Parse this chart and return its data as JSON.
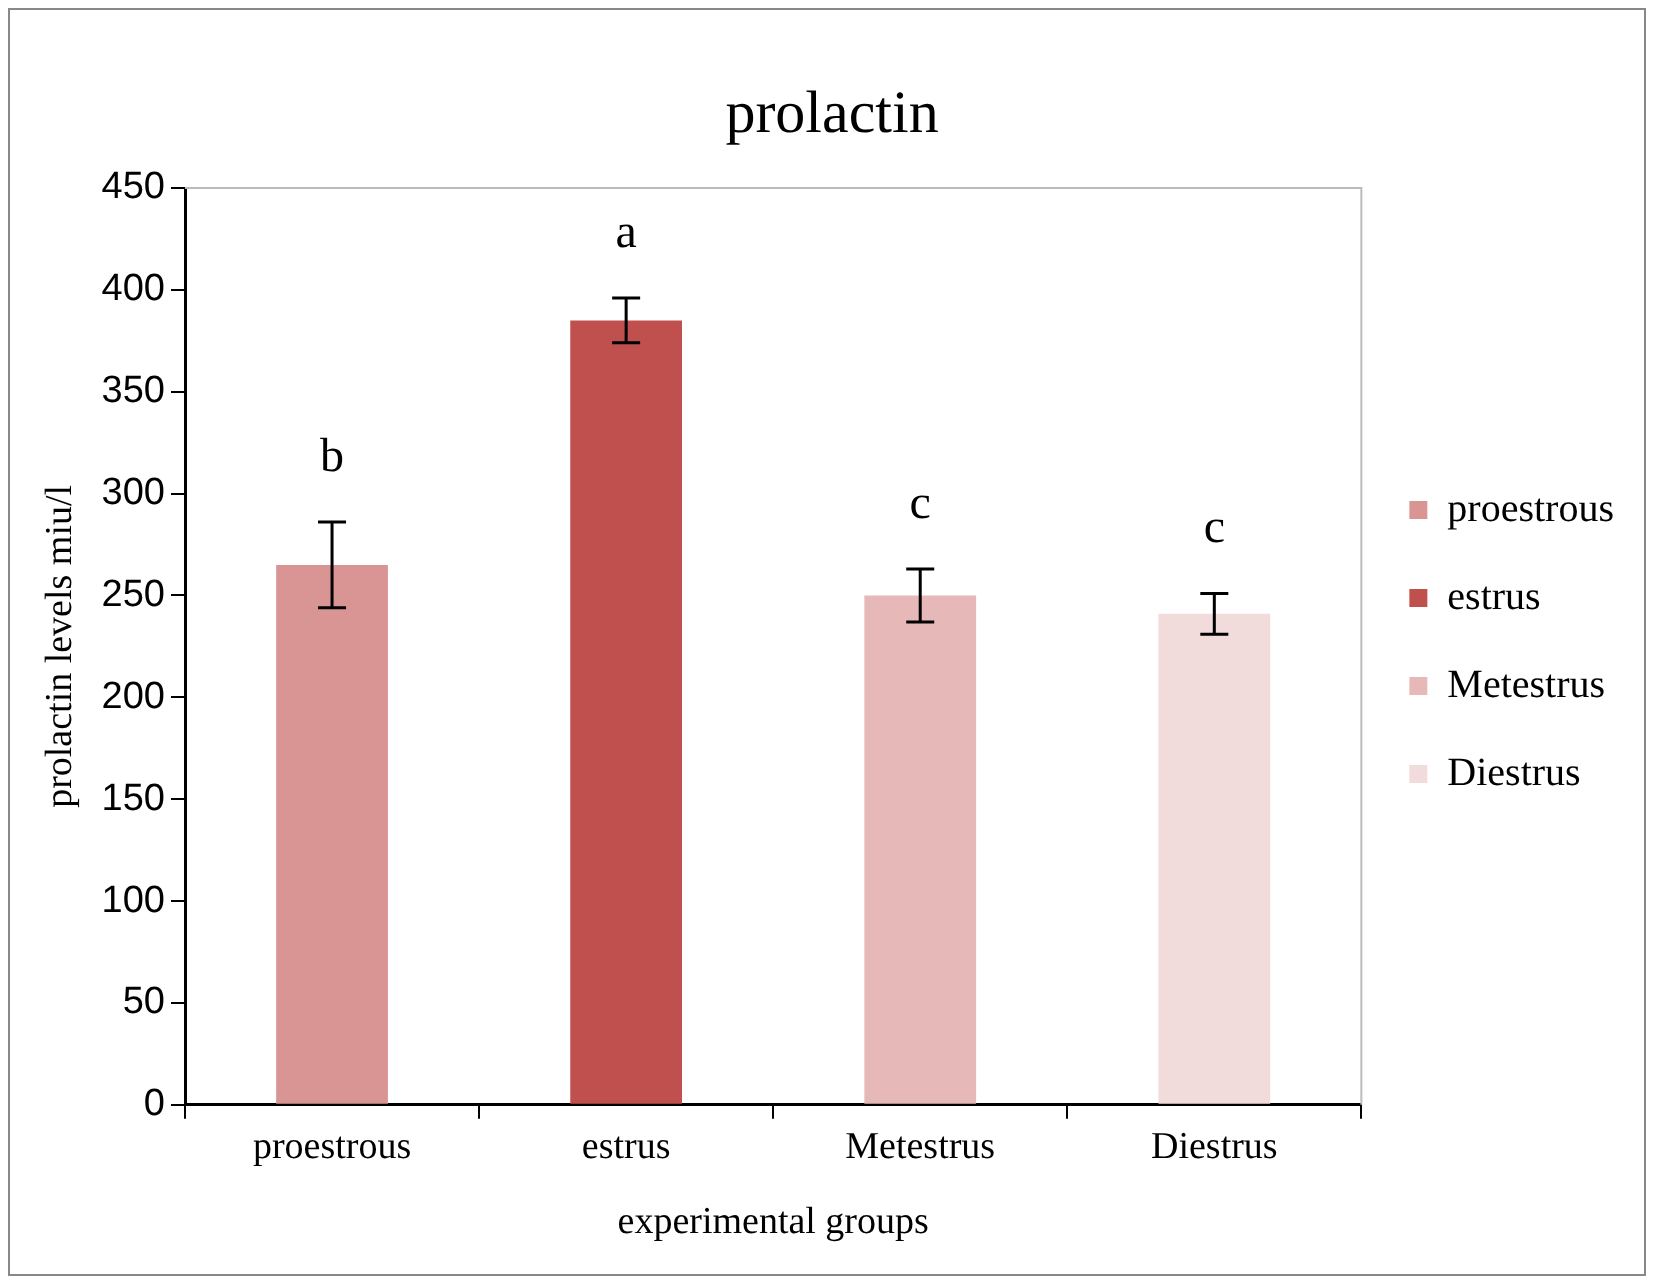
{
  "chart_data": {
    "type": "bar",
    "title": "prolactin",
    "xlabel": "experimental groups",
    "ylabel": "prolactin levels miu/l",
    "categories": [
      "proestrous",
      "estrus",
      "Metestrus",
      "Diestrus"
    ],
    "series": [
      {
        "name": "proestrous",
        "color": "#d99594",
        "values": [
          265,
          null,
          null,
          null
        ],
        "errors": [
          21,
          null,
          null,
          null
        ]
      },
      {
        "name": "estrus",
        "color": "#c0504d",
        "values": [
          null,
          385,
          null,
          null
        ],
        "errors": [
          null,
          11,
          null,
          null
        ]
      },
      {
        "name": "Metestrus",
        "color": "#e6b9b8",
        "values": [
          null,
          null,
          250,
          null
        ],
        "errors": [
          null,
          null,
          13,
          null
        ]
      },
      {
        "name": "Diestrus",
        "color": "#f2dcdb",
        "values": [
          null,
          null,
          null,
          241
        ],
        "errors": [
          null,
          null,
          null,
          10
        ]
      }
    ],
    "ylim": [
      0,
      450
    ],
    "yticks": [
      0,
      50,
      100,
      150,
      200,
      250,
      300,
      350,
      400,
      450
    ],
    "grid": false,
    "legend": "right",
    "annotations": [
      "b",
      "a",
      "c",
      "c"
    ]
  }
}
